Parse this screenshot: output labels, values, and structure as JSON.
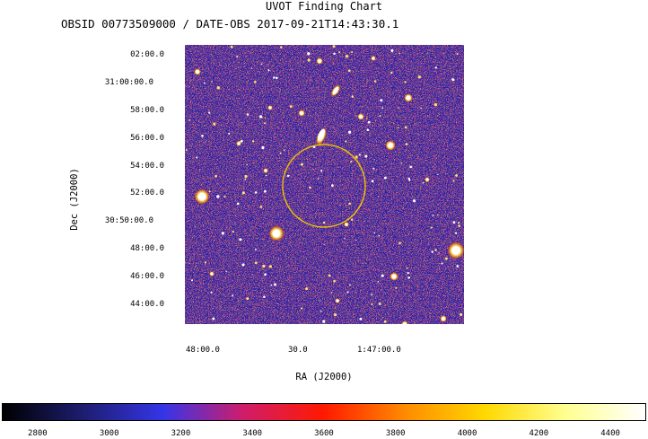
{
  "title": "UVOT Finding Chart",
  "subtitle": "OBSID 00773509000 / DATE-OBS 2017-09-21T14:43:30.1",
  "axes": {
    "x_label": "RA (J2000)",
    "y_label": "Dec (J2000)",
    "x_ticks": [
      "48:00.0",
      "30.0",
      "1:47:00.0"
    ],
    "y_ticks": [
      "02:00.0",
      "31:00:00.0",
      "58:00.0",
      "56:00.0",
      "54:00.0",
      "52:00.0",
      "30:50:00.0",
      "48:00.0",
      "46:00.0",
      "44:00.0"
    ]
  },
  "overlay": {
    "shape": "circle",
    "color": "#f2c200"
  },
  "colorbar": {
    "ticks": [
      "2800",
      "3000",
      "3200",
      "3400",
      "3600",
      "3800",
      "4000",
      "4200",
      "4400"
    ],
    "range": [
      2700,
      4500
    ],
    "stops": [
      "#000000",
      "#1d1d70",
      "#3535e8",
      "#d01d6a",
      "#ff1a00",
      "#ff8a00",
      "#ffd800",
      "#ffff90",
      "#ffffff"
    ]
  },
  "colors": {
    "background_blue": "#1c1cb8",
    "noise_red": "#d4103a",
    "star_white": "#ffffff"
  }
}
